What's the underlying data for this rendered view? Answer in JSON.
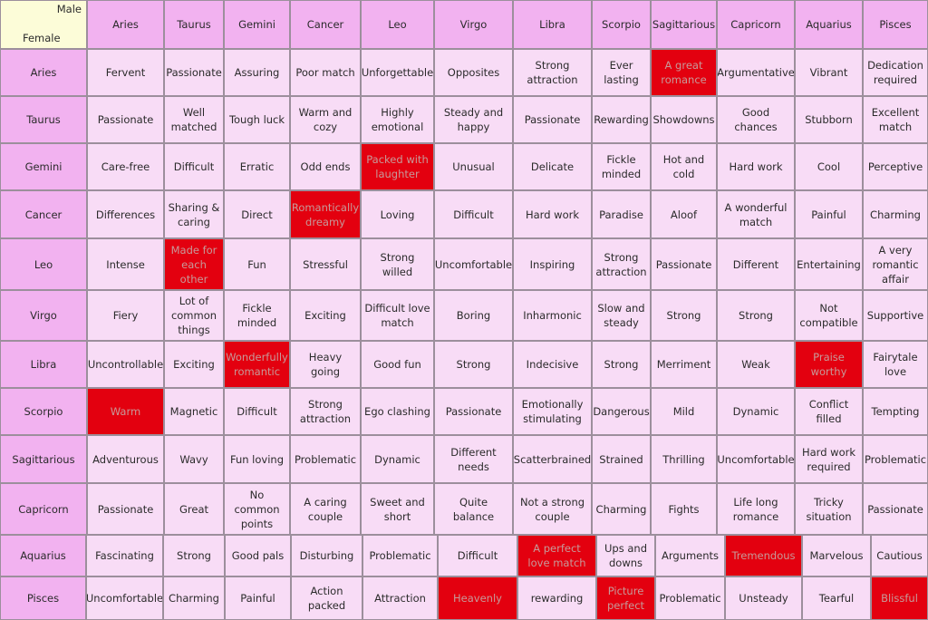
{
  "corner": {
    "male": "Male",
    "female": "Female"
  },
  "male_signs": [
    "Aries",
    "Taurus",
    "Gemini",
    "Cancer",
    "Leo",
    "Virgo",
    "Libra",
    "Scorpio",
    "Sagittarious",
    "Capricorn",
    "Aquarius",
    "Pisces"
  ],
  "rows": [
    {
      "sign": "Aries",
      "cells": [
        {
          "text": "Fervent"
        },
        {
          "text": "Passionate"
        },
        {
          "text": "Assuring"
        },
        {
          "text": "Poor match"
        },
        {
          "text": "Unforgettable"
        },
        {
          "text": "Opposites"
        },
        {
          "text": "Strong attraction"
        },
        {
          "text": "Ever lasting"
        },
        {
          "text": "A great romance",
          "highlight": true
        },
        {
          "text": "Argumentative"
        },
        {
          "text": "Vibrant"
        },
        {
          "text": "Dedication required"
        }
      ]
    },
    {
      "sign": "Taurus",
      "cells": [
        {
          "text": "Passionate"
        },
        {
          "text": "Well matched"
        },
        {
          "text": "Tough luck"
        },
        {
          "text": "Warm and cozy"
        },
        {
          "text": "Highly emotional"
        },
        {
          "text": "Steady and happy"
        },
        {
          "text": "Passionate"
        },
        {
          "text": "Rewarding"
        },
        {
          "text": "Showdowns"
        },
        {
          "text": "Good chances"
        },
        {
          "text": "Stubborn"
        },
        {
          "text": "Excellent match"
        }
      ]
    },
    {
      "sign": "Gemini",
      "cells": [
        {
          "text": "Care-free"
        },
        {
          "text": "Difficult"
        },
        {
          "text": "Erratic"
        },
        {
          "text": "Odd ends"
        },
        {
          "text": "Packed with laughter",
          "highlight": true
        },
        {
          "text": "Unusual"
        },
        {
          "text": "Delicate"
        },
        {
          "text": "Fickle minded"
        },
        {
          "text": "Hot and cold"
        },
        {
          "text": "Hard work"
        },
        {
          "text": "Cool"
        },
        {
          "text": "Perceptive"
        }
      ]
    },
    {
      "sign": "Cancer",
      "cells": [
        {
          "text": "Differences"
        },
        {
          "text": "Sharing & caring"
        },
        {
          "text": "Direct"
        },
        {
          "text": "Romantically dreamy",
          "highlight": true
        },
        {
          "text": "Loving"
        },
        {
          "text": "Difficult"
        },
        {
          "text": "Hard work"
        },
        {
          "text": "Paradise"
        },
        {
          "text": "Aloof"
        },
        {
          "text": "A wonderful match"
        },
        {
          "text": "Painful"
        },
        {
          "text": "Charming"
        }
      ]
    },
    {
      "sign": "Leo",
      "cells": [
        {
          "text": "Intense"
        },
        {
          "text": "Made for each other",
          "highlight": true
        },
        {
          "text": "Fun"
        },
        {
          "text": "Stressful"
        },
        {
          "text": "Strong willed"
        },
        {
          "text": "Uncomfortable"
        },
        {
          "text": "Inspiring"
        },
        {
          "text": "Strong attraction"
        },
        {
          "text": "Passionate"
        },
        {
          "text": "Different"
        },
        {
          "text": "Entertaining"
        },
        {
          "text": "A very romantic affair"
        }
      ]
    },
    {
      "sign": "Virgo",
      "cells": [
        {
          "text": "Fiery"
        },
        {
          "text": "Lot of common things"
        },
        {
          "text": "Fickle minded"
        },
        {
          "text": "Exciting"
        },
        {
          "text": "Difficult love match"
        },
        {
          "text": "Boring"
        },
        {
          "text": "Inharmonic"
        },
        {
          "text": "Slow and steady"
        },
        {
          "text": "Strong"
        },
        {
          "text": "Strong"
        },
        {
          "text": "Not compatible"
        },
        {
          "text": "Supportive"
        }
      ]
    },
    {
      "sign": "Libra",
      "cells": [
        {
          "text": "Uncontrollable"
        },
        {
          "text": "Exciting"
        },
        {
          "text": "Wonderfully romantic",
          "highlight": true
        },
        {
          "text": "Heavy going"
        },
        {
          "text": "Good fun"
        },
        {
          "text": "Strong"
        },
        {
          "text": "Indecisive"
        },
        {
          "text": "Strong"
        },
        {
          "text": "Merriment"
        },
        {
          "text": "Weak"
        },
        {
          "text": "Praise worthy",
          "highlight": true
        },
        {
          "text": "Fairytale love"
        }
      ]
    },
    {
      "sign": "Scorpio",
      "cells": [
        {
          "text": "Warm",
          "highlight": true
        },
        {
          "text": "Magnetic"
        },
        {
          "text": "Difficult"
        },
        {
          "text": "Strong attraction"
        },
        {
          "text": "Ego clashing"
        },
        {
          "text": "Passionate"
        },
        {
          "text": "Emotionally stimulating"
        },
        {
          "text": "Dangerous"
        },
        {
          "text": "Mild"
        },
        {
          "text": "Dynamic"
        },
        {
          "text": "Conflict filled"
        },
        {
          "text": "Tempting"
        }
      ]
    },
    {
      "sign": "Sagittarious",
      "cells": [
        {
          "text": "Adventurous"
        },
        {
          "text": "Wavy"
        },
        {
          "text": "Fun loving"
        },
        {
          "text": "Problematic"
        },
        {
          "text": "Dynamic"
        },
        {
          "text": "Different needs"
        },
        {
          "text": "Scatterbrained"
        },
        {
          "text": "Strained"
        },
        {
          "text": "Thrilling"
        },
        {
          "text": "Uncomfortable"
        },
        {
          "text": "Hard work required"
        },
        {
          "text": "Problematic"
        }
      ]
    },
    {
      "sign": "Capricorn",
      "cells": [
        {
          "text": "Passionate"
        },
        {
          "text": "Great"
        },
        {
          "text": "No common points"
        },
        {
          "text": "A caring couple"
        },
        {
          "text": "Sweet and short"
        },
        {
          "text": "Quite balance"
        },
        {
          "text": "Not a strong couple"
        },
        {
          "text": "Charming"
        },
        {
          "text": "Fights"
        },
        {
          "text": "Life long romance"
        },
        {
          "text": "Tricky situation"
        },
        {
          "text": "Passionate"
        }
      ]
    },
    {
      "sign": "Aquarius",
      "cells": [
        {
          "text": "Fascinating"
        },
        {
          "text": "Strong"
        },
        {
          "text": "Good pals"
        },
        {
          "text": "Disturbing"
        },
        {
          "text": "Problematic"
        },
        {
          "text": "Difficult"
        },
        {
          "text": "A perfect love match",
          "highlight": true
        },
        {
          "text": "Ups and downs"
        },
        {
          "text": "Arguments"
        },
        {
          "text": "Tremendous",
          "highlight": true
        },
        {
          "text": "Marvelous"
        },
        {
          "text": "Cautious"
        }
      ]
    },
    {
      "sign": "Pisces",
      "cells": [
        {
          "text": "Uncomfortable"
        },
        {
          "text": "Charming"
        },
        {
          "text": "Painful"
        },
        {
          "text": "Action packed"
        },
        {
          "text": "Attraction"
        },
        {
          "text": "Heavenly",
          "highlight": true
        },
        {
          "text": "rewarding"
        },
        {
          "text": "Picture perfect",
          "highlight": true
        },
        {
          "text": "Problematic"
        },
        {
          "text": "Unsteady"
        },
        {
          "text": "Tearful"
        },
        {
          "text": "Blissful",
          "highlight": true
        }
      ]
    }
  ],
  "colors": {
    "header_bg": "#f2b2f0",
    "cell_bg": "#f8dcf6",
    "corner_bg": "#fcfcd8",
    "highlight_bg": "#e3000f",
    "grid_line": "#9c8f9c"
  }
}
